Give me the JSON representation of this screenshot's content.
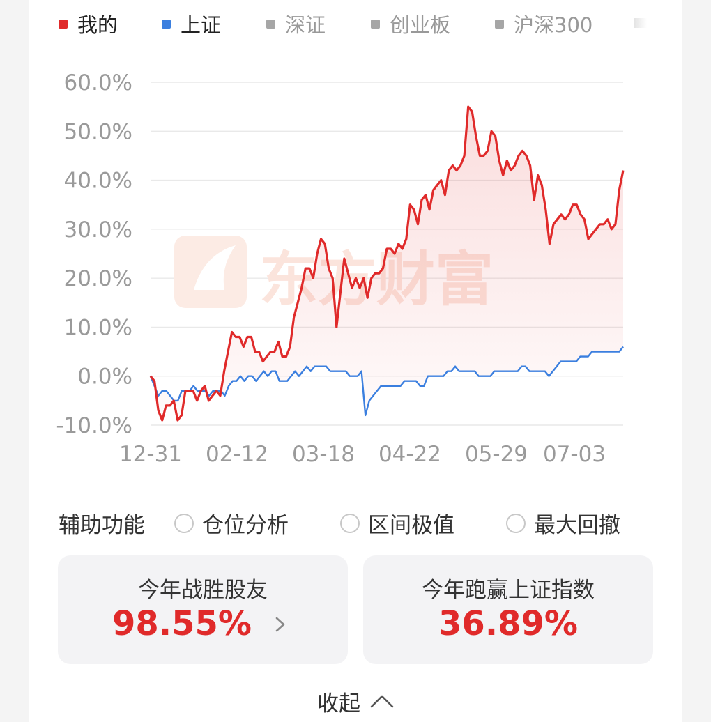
{
  "legend": [
    {
      "label": "我的",
      "color": "#e02a2a",
      "active": true
    },
    {
      "label": "上证",
      "color": "#3b7fdf",
      "active": true
    },
    {
      "label": "深证",
      "color": "#a6a6a6",
      "active": false
    },
    {
      "label": "创业板",
      "color": "#a6a6a6",
      "active": false
    },
    {
      "label": "沪深300",
      "color": "#a6a6a6",
      "active": false
    }
  ],
  "watermark": "东方财富",
  "chart_data": {
    "type": "line",
    "x_ticks": [
      "12-31",
      "02-12",
      "03-18",
      "04-22",
      "05-29",
      "07-03"
    ],
    "y_ticks": [
      "60.0%",
      "50.0%",
      "40.0%",
      "30.0%",
      "20.0%",
      "10.0%",
      "0.0%",
      "-10.0%"
    ],
    "ylim": [
      -10,
      60
    ],
    "grid": true,
    "series": [
      {
        "name": "我的",
        "color": "#e02a2a",
        "values": [
          0,
          -1,
          -7,
          -9,
          -6,
          -6,
          -5,
          -9,
          -8,
          -3,
          -3,
          -3,
          -5,
          -3,
          -2,
          -5,
          -4,
          -3,
          -4,
          1,
          5,
          9,
          8,
          8,
          6,
          8,
          8,
          5,
          5,
          3,
          4,
          5,
          5,
          7,
          4,
          4,
          6,
          12,
          15,
          18,
          22,
          22,
          20,
          25,
          28,
          27,
          22,
          20,
          10,
          17,
          24,
          21,
          18,
          20,
          18,
          20,
          16,
          20,
          21,
          21,
          22,
          26,
          26,
          25,
          27,
          26,
          28,
          35,
          34,
          31,
          36,
          37,
          34,
          38,
          39,
          40,
          37,
          42,
          43,
          42,
          43,
          45,
          55,
          54,
          49,
          45,
          45,
          46,
          50,
          49,
          44,
          41,
          44,
          42,
          43,
          45,
          46,
          45,
          43,
          36,
          41,
          39,
          34,
          27,
          31,
          32,
          33,
          32,
          33,
          35,
          35,
          33,
          32,
          28,
          29,
          30,
          31,
          31,
          32,
          30,
          31,
          38,
          42
        ]
      },
      {
        "name": "上证",
        "color": "#3b7fdf",
        "values": [
          0,
          -2,
          -4,
          -3,
          -3,
          -4,
          -5,
          -5,
          -3,
          -3,
          -3,
          -2,
          -3,
          -3,
          -3,
          -4,
          -3,
          -3,
          -3,
          -4,
          -2,
          -1,
          -1,
          0,
          -1,
          0,
          0,
          -1,
          0,
          1,
          0,
          1,
          1,
          -1,
          -1,
          -1,
          0,
          1,
          0,
          1,
          2,
          1,
          2,
          2,
          2,
          2,
          1,
          1,
          1,
          1,
          1,
          0,
          0,
          0,
          1,
          -8,
          -5,
          -4,
          -3,
          -2,
          -2,
          -2,
          -2,
          -2,
          -2,
          -1,
          -1,
          -1,
          -1,
          -2,
          -2,
          0,
          0,
          0,
          0,
          0,
          1,
          1,
          2,
          1,
          1,
          1,
          1,
          1,
          0,
          0,
          0,
          0,
          1,
          1,
          1,
          1,
          1,
          1,
          1,
          2,
          2,
          1,
          1,
          1,
          1,
          1,
          0,
          1,
          2,
          3,
          3,
          3,
          3,
          3,
          4,
          4,
          4,
          5,
          5,
          5,
          5,
          5,
          5,
          5,
          5,
          6
        ]
      }
    ]
  },
  "tools": {
    "title": "辅助功能",
    "options": [
      {
        "label": "仓位分析"
      },
      {
        "label": "区间极值"
      },
      {
        "label": "最大回撤"
      }
    ]
  },
  "stats": {
    "win_label": "今年战胜股友",
    "win_value": "98.55%",
    "beat_label": "今年跑赢上证指数",
    "beat_value": "36.89%"
  },
  "collapse_label": "收起"
}
